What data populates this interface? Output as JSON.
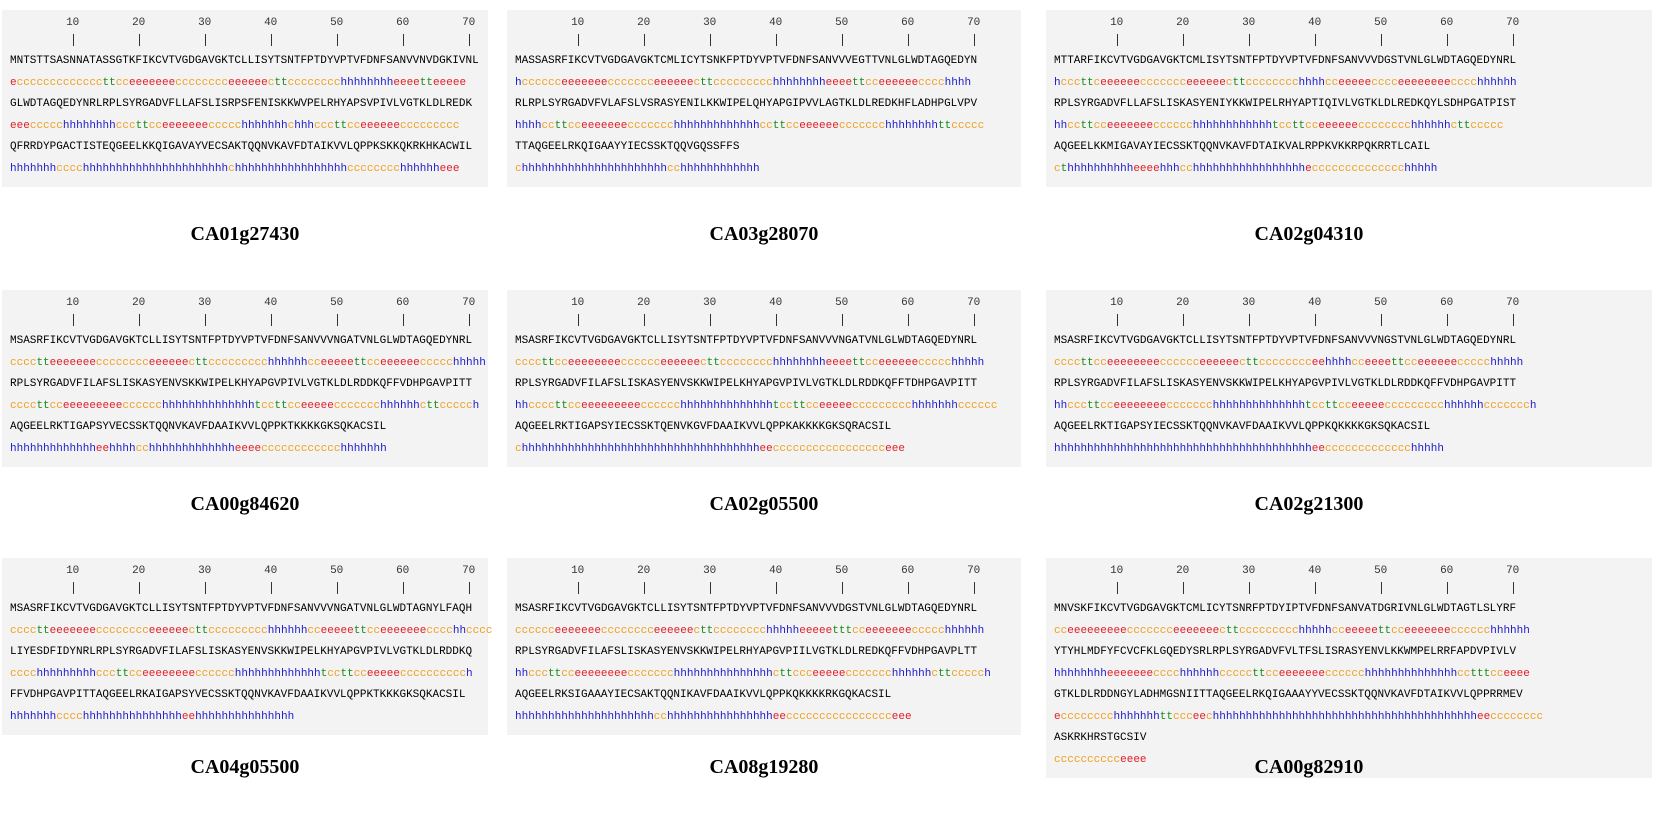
{
  "ruler": [
    10,
    20,
    30,
    40,
    50,
    60,
    70
  ],
  "structure_colors": {
    "h": "#1c1ccc",
    "e": "#e0202a",
    "c": "#f0a020",
    "t": "#1a8a1a"
  },
  "panels": [
    {
      "label": "CA01g27430",
      "lines": [
        {
          "seq": "MNTSTTSASNNATASSGTKFIKCVTVGDGAVGKTCLLISYTSNTFPTDYVPTVFDNFSANVVNVDGKIVNL",
          "ss": "ecccccccccccccttcceeeeeeecccccccceeeeeecttcccccccchhhhhhhheeeetteeeee"
        },
        {
          "seq": "GLWDTAGQEDYNRLRPLSYRGADVFLLAFSLISRPSFENISKKWVPELRHYAPSVPIVLVGTKLDLREDK",
          "ss": "eeeccccchhhhhhhhcccttcceeeeeeeccccchhhhhhhchhhcccttcceeeeeeccccccccc"
        },
        {
          "seq": "QFRRDYPGACTISTEQGEELKKQIGAVAYVECSAKTQQNVKAVFDTAIKVVLQPPKSKKQKRKHKACWIL",
          "ss": "hhhhhhhcccchhhhhhhhhhhhhhhhhhhhhhchhhhhhhhhhhhhhhhhcccccccchhhhhheee"
        }
      ]
    },
    {
      "label": "CA03g28070",
      "lines": [
        {
          "seq": "MASSASRFIKCVTVGDGAVGKTCMLICYTSNKFPTDYVPTVFDNFSANVVVEGTTVNLGLWDTAGQEDYN",
          "ss": "hcccccceeeeeeeccccccceeeeeecttccccccccchhhhhhhheeeettcceeeeeecccchhhh"
        },
        {
          "seq": "RLRPLSYRGADVFVLAFSLVSRASYENILKKWIPELQHYAPGIPVVLAGTKLDLREDKHFLADHPGLVPV",
          "ss": "hhhhccttcceeeeeeeccccccchhhhhhhhhhhhhccttcceeeeeeccccccchhhhhhhhttccccc"
        },
        {
          "seq": "TTAQGEELRKQIGAAYYIECSSKTQQVGQSSFFS",
          "ss": "chhhhhhhhhhhhhhhhhhhhhhcchhhhhhhhhhhh"
        }
      ]
    },
    {
      "label": "CA02g04310",
      "lines": [
        {
          "seq": "MTTARFIKCVTVGDGAVGKTCMLISYTSNTFPTDYVPTVFDNFSANVVVDGSTVNLGLWDTAGQEDYNRL",
          "ss": "hcccttceeeeeeccccccceeeeeecttcccccccchhhhcceeeeecccceeeeeeeecccchhhhhh"
        },
        {
          "seq": "RPLSYRGADVFLLAFSLISKASYENIYKKWIPELRHYAPTIQIVLVGTKLDLREDKQYLSDHPGATPIST",
          "ss": "hhccttcceeeeeeecccccchhhhhhhhhhhhtccttcceeeeeecccccccchhhhhhcttccccc"
        },
        {
          "seq": "AQGEELKKMIGAVAYIECSSKTQQNVKAVFDTAIKVALRPPKVKKRPQKRRTLCAIL",
          "ss": "cthhhhhhhhhheeeehhhcchhhhhhhhhhhhhhhhhecccccccccccccchhhhh"
        }
      ]
    },
    {
      "label": "CA00g84620",
      "lines": [
        {
          "seq": "MSASRFIKCVTVGDGAVGKTCLLISYTSNTFPTDYVPTVFDNFSANVVVNGATVNLGLWDTAGQEDYNRL",
          "ss": "cccctteeeeeeecccccccceeeeeecttccccccccchhhhhhcceeeeettcceeeeeeccccchhhhh"
        },
        {
          "seq": "RPLSYRGADVFILAFSLISKASYENVSKKWIPELKHYAPGVPIVLVGTKLDLRDDKQFFVDHPGAVPITT",
          "ss": "ccccttcceeeeeeeeecccccchhhhhhhhhhhhhhtccttcceeeeeccccccchhhhhhcttccccch"
        },
        {
          "seq": "AQGEELRKTIGAPSYVECSSKTQQNVKAVFDAAIKVVLQPPKTKKKKGKSQKACSIL",
          "ss": "hhhhhhhhhhhhheehhhhcchhhhhhhhhhhhheeeecccccccccccchhhhhhh"
        }
      ]
    },
    {
      "label": "CA02g05500",
      "lines": [
        {
          "seq": "MSASRFIKCVTVGDGAVGKTCLLISYTSNTFPTDYVPTVFDNFSANVVVNGATVNLGLWDTAGQEDYNRL",
          "ss": "ccccttcceeeeeeeecccccceeeeeecttcccccccchhhhhhhheeeettcceeeeeeccccchhhhh"
        },
        {
          "seq": "RPLSYRGADVFILAFSLISKASYENVSKKWIPELKHYAPGVPIVLVGTKLDLRDDKQFFTDHPGAVPITT",
          "ss": "hhccccttcceeeeeeeeecccccchhhhhhhhhhhhhhtccttcceeeeeccccccccchhhhhhhcccccc"
        },
        {
          "seq": "AQGEELRKTIGAPSYIECSSKTQENVKGVFDAAIKVVLQPPKAKKKKGKSQRACSIL",
          "ss": "chhhhhhhhhhhhhhhhhhhhhhhhhhhhhhhhhhhheeccccccccccccccccceee"
        }
      ]
    },
    {
      "label": "CA02g21300",
      "lines": [
        {
          "seq": "MSASRFIKCVTVGDGAVGKTCLLISYTSNTFPTDYVPTVFDNFSANVVVNGSTVNLGLWDTAGQEDYNRL",
          "ss": "ccccttcceeeeeeeecccccceeeeeecttcccccccceehhhhcceeeettcceeeeeeccccchhhhh"
        },
        {
          "seq": "RPLSYRGADVFILAFSLISKASYENVSKKWIPELKHYAPGVPIVLVGTKLDLRDDKQFFVDHPGAVPITT",
          "ss": "hhcccttcceeeeeeeeccccccchhhhhhhhhhhhhhtccttcceeeeeccccccccchhhhhhccccccch"
        },
        {
          "seq": "AQGEELRKTIGAPSYIECSSKTQQNVKAVFDAAIKVVLQPPKQKKKKGKSQKACSIL",
          "ss": "hhhhhhhhhhhhhhhhhhhhhhhhhhhhhhhhhhhhhhheeccccccccccccchhhhh"
        }
      ]
    },
    {
      "label": "CA04g05500",
      "lines": [
        {
          "seq": "MSASRFIKCVTVGDGAVGKTCLLISYTSNTFPTDYVPTVFDNFSANVVVNGATVNLGLWDTAGNYLFAQH",
          "ss": "cccctteeeeeeecccccccceeeeeecttccccccccchhhhhhcceeeeettcceeeeeeecccchhcccc"
        },
        {
          "seq": "LIYESDFIDYNRLRPLSYRGADVFILAFSLISKASYENVSKKWIPELKHYAPGVPIVLVGTKLDLRDDKQ",
          "ss": "cccchhhhhhhhhcccttcceeeeeeeecccccchhhhhhhhhhhhhtccttcceeeeecccccccccch"
        },
        {
          "seq": "FFVDHPGAVPITTAQGEELRKAIGAPSYVECSSKTQQNVKAVFDAAIKVVLQPPKTKKKGKSQKACSIL",
          "ss": "hhhhhhhcccchhhhhhhhhhhhhhheehhhhhhhhhhhhhhh"
        }
      ]
    },
    {
      "label": "CA08g19280",
      "lines": [
        {
          "seq": "MSASRFIKCVTVGDGAVGKTCLLISYTSNTFPTDYVPTVFDNFSANVVVDGSTVNLGLWDTAGQEDYNRL",
          "ss": "cccccceeeeeeecccccccceeeeeecttcccccccchhhhheeeeetttcceeeeeeeccccchhhhhh"
        },
        {
          "seq": "RPLSYRGADVFILAFSLISKASYENVSKKWIPELRHYAPGVPIILVGTKLDLREDKQFFVDHPGAVPLTT",
          "ss": "hhcccttcceeeeeeeeccccccchhhhhhhhhhhhhhhcttccceeeeeccccccchhhhhhcttccccch"
        },
        {
          "seq": "AQGEELRKSIGAAAYIECSAKTQQNIKAVFDAAIKVVLQPPKQKKKKRKGQKACSIL",
          "ss": "hhhhhhhhhhhhhhhhhhhhhcchhhhhhhhhhhhhhhheecccccccccccccccceee"
        }
      ]
    },
    {
      "label": "CA00g82910",
      "lines": [
        {
          "seq": "MNVSKFIKCVTVGDGAVGKTCMLICYTSNRFPTDYIPTVFDNFSANVATDGRIVNLGLWDTAGTLSLYRF",
          "ss": "cceeeeeeeeeccccccceeeeeeecttccccccccchhhhhcceeeeettcceeeeeeecccccchhhhhh"
        },
        {
          "seq": "YTYHLMDFYFCVCFKLGQEDYSRLRPLSYRGADVFVLTFSLISRASYENVLKKWMPELRRFAPDVPIVLV",
          "ss": "hhhhhhhheeeeeeecccchhhhhhcccccttcceeeeeeecccccchhhhhhhhhhhhhhcctttcceeee"
        },
        {
          "seq": "GTKLDLRDDNGYLADHMGSNIITTAQGEELRKQIGAAAYYVECSSKTQQNVKAVFDTAIKVVLQPPRRMEV",
          "ss": "ecccccccchhhhhhhttccceechhhhhhhhhhhhhhhhhhhhhhhhhhhhhhhhhhhhhhhheecccccccc"
        },
        {
          "seq": "ASKRKHRSTGCSIV",
          "ss": "cccccccccceeee"
        }
      ]
    }
  ]
}
